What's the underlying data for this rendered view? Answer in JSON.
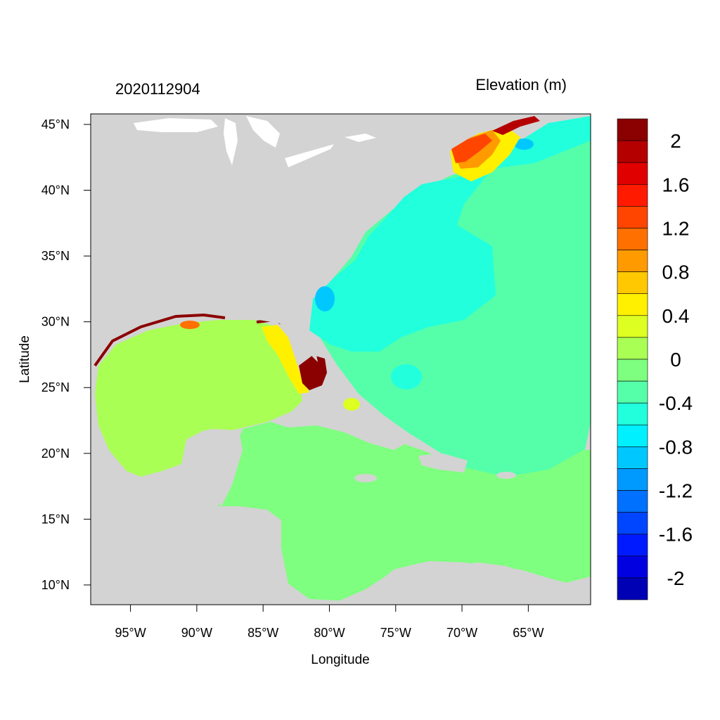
{
  "date_label": "2020112904",
  "units_label": "Elevation (m)",
  "axes": {
    "xlabel": "Longitude",
    "ylabel": "Latitude",
    "lon_range": [
      -98,
      -60.3
    ],
    "lat_range": [
      8.5,
      45.8
    ],
    "lon_ticks": [
      {
        "value": -95,
        "label": "95°W"
      },
      {
        "value": -90,
        "label": "90°W"
      },
      {
        "value": -85,
        "label": "85°W"
      },
      {
        "value": -80,
        "label": "80°W"
      },
      {
        "value": -75,
        "label": "75°W"
      },
      {
        "value": -70,
        "label": "70°W"
      },
      {
        "value": -65,
        "label": "65°W"
      }
    ],
    "lat_ticks": [
      {
        "value": 45,
        "label": "45°N"
      },
      {
        "value": 40,
        "label": "40°N"
      },
      {
        "value": 35,
        "label": "35°N"
      },
      {
        "value": 30,
        "label": "30°N"
      },
      {
        "value": 25,
        "label": "25°N"
      },
      {
        "value": 20,
        "label": "20°N"
      },
      {
        "value": 15,
        "label": "15°N"
      },
      {
        "value": 10,
        "label": "10°N"
      }
    ]
  },
  "colorbar": {
    "levels_top_to_bottom": [
      2.2,
      2.0,
      1.8,
      1.6,
      1.4,
      1.2,
      1.0,
      0.8,
      0.6,
      0.4,
      0.2,
      0.0,
      -0.2,
      -0.4,
      -0.6,
      -0.8,
      -1.0,
      -1.2,
      -1.4,
      -1.6,
      -1.8,
      -2.0
    ],
    "colors_top_to_bottom": [
      "#8b0000",
      "#b50000",
      "#e00000",
      "#ff1a00",
      "#ff4500",
      "#ff7000",
      "#ff9a00",
      "#ffc800",
      "#fff000",
      "#ddff22",
      "#aaff55",
      "#7fff7f",
      "#55ffaa",
      "#22ffdd",
      "#00f0ff",
      "#00c8ff",
      "#009aff",
      "#0070ff",
      "#0045ff",
      "#001aff",
      "#0000e0",
      "#0000b5"
    ],
    "labels": [
      {
        "value": 2.0,
        "label": "2"
      },
      {
        "value": 1.6,
        "label": "1.6"
      },
      {
        "value": 1.2,
        "label": "1.2"
      },
      {
        "value": 0.8,
        "label": "0.8"
      },
      {
        "value": 0.4,
        "label": "0.4"
      },
      {
        "value": 0.0,
        "label": "0"
      },
      {
        "value": -0.4,
        "label": "-0.4"
      },
      {
        "value": -0.8,
        "label": "-0.8"
      },
      {
        "value": -1.2,
        "label": "-1.2"
      },
      {
        "value": -1.6,
        "label": "-1.6"
      },
      {
        "value": -2.0,
        "label": "-2"
      }
    ]
  },
  "colors": {
    "land": "#d3d3d3",
    "lakes": "#ffffff",
    "gulf_of_mexico": "#aaff55",
    "caribbean": "#7fff7f",
    "western_atlantic": "#22ffdd",
    "open_atlantic": "#55ffaa",
    "surge_peak": "#8b0000"
  }
}
